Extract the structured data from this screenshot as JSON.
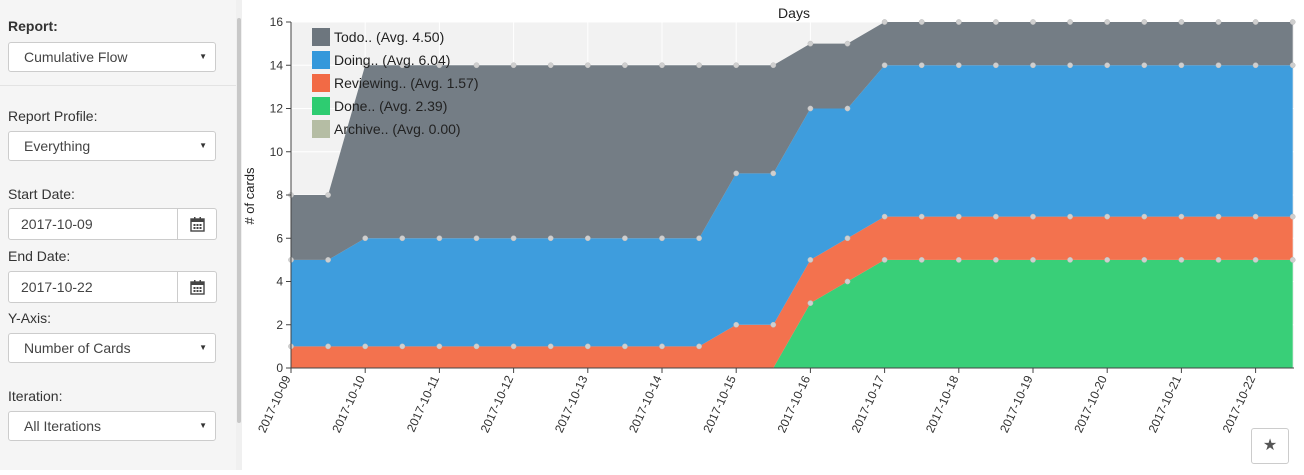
{
  "sidebar": {
    "report_label": "Report:",
    "report_value": "Cumulative Flow",
    "profile_label": "Report Profile:",
    "profile_value": "Everything",
    "start_label": "Start Date:",
    "start_value": "2017-10-09",
    "end_label": "End Date:",
    "end_value": "2017-10-22",
    "yaxis_label": "Y-Axis:",
    "yaxis_value": "Number of Cards",
    "iteration_label": "Iteration:",
    "iteration_value": "All Iterations",
    "caret_icon": "caret-down-icon",
    "calendar_icon": "calendar-icon"
  },
  "toolbar": {
    "star_icon": "star-icon"
  },
  "chart_data": {
    "type": "area",
    "stacked": true,
    "title": "Days",
    "xlabel": "",
    "ylabel": "# of cards",
    "ylim": [
      0,
      16
    ],
    "yticks": [
      0,
      2,
      4,
      6,
      8,
      10,
      12,
      14,
      16
    ],
    "x": [
      "2017-10-09",
      "2017-10-09 12:00",
      "2017-10-10",
      "2017-10-10 12:00",
      "2017-10-11",
      "2017-10-11 12:00",
      "2017-10-12",
      "2017-10-12 12:00",
      "2017-10-13",
      "2017-10-13 12:00",
      "2017-10-14",
      "2017-10-14 12:00",
      "2017-10-15",
      "2017-10-15 12:00",
      "2017-10-16",
      "2017-10-16 12:00",
      "2017-10-17",
      "2017-10-17 12:00",
      "2017-10-18",
      "2017-10-18 12:00",
      "2017-10-19",
      "2017-10-19 12:00",
      "2017-10-20",
      "2017-10-20 12:00",
      "2017-10-21",
      "2017-10-21 12:00",
      "2017-10-22",
      "2017-10-22 12:00"
    ],
    "xtick_labels": [
      "2017-10-09",
      "2017-10-10",
      "2017-10-11",
      "2017-10-12",
      "2017-10-13",
      "2017-10-14",
      "2017-10-15",
      "2017-10-16",
      "2017-10-17",
      "2017-10-18",
      "2017-10-19",
      "2017-10-20",
      "2017-10-21",
      "2017-10-22"
    ],
    "legend_position": "top-left",
    "series": [
      {
        "name": "Todo.. (Avg. 4.50)",
        "color": "#6d767e",
        "values": [
          3,
          3,
          8,
          8,
          8,
          8,
          8,
          8,
          8,
          8,
          8,
          8,
          5,
          5,
          3,
          3,
          2,
          2,
          2,
          2,
          2,
          2,
          2,
          2,
          2,
          2,
          2,
          2
        ]
      },
      {
        "name": "Doing.. (Avg. 6.04)",
        "color": "#3498db",
        "values": [
          4,
          4,
          5,
          5,
          5,
          5,
          5,
          5,
          5,
          5,
          5,
          5,
          7,
          7,
          7,
          6,
          7,
          7,
          7,
          7,
          7,
          7,
          7,
          7,
          7,
          7,
          7,
          7
        ]
      },
      {
        "name": "Reviewing.. (Avg. 1.57)",
        "color": "#f26a45",
        "values": [
          1,
          1,
          1,
          1,
          1,
          1,
          1,
          1,
          1,
          1,
          1,
          1,
          2,
          2,
          2,
          2,
          2,
          2,
          2,
          2,
          2,
          2,
          2,
          2,
          2,
          2,
          2,
          2
        ]
      },
      {
        "name": "Done.. (Avg. 2.39)",
        "color": "#2ecc71",
        "values": [
          0,
          0,
          0,
          0,
          0,
          0,
          0,
          0,
          0,
          0,
          0,
          0,
          0,
          0,
          3,
          4,
          5,
          5,
          5,
          5,
          5,
          5,
          5,
          5,
          5,
          5,
          5,
          5
        ]
      },
      {
        "name": "Archive.. (Avg. 0.00)",
        "color": "#b5bda4",
        "values": [
          0,
          0,
          0,
          0,
          0,
          0,
          0,
          0,
          0,
          0,
          0,
          0,
          0,
          0,
          0,
          0,
          0,
          0,
          0,
          0,
          0,
          0,
          0,
          0,
          0,
          0,
          0,
          0
        ]
      }
    ]
  }
}
